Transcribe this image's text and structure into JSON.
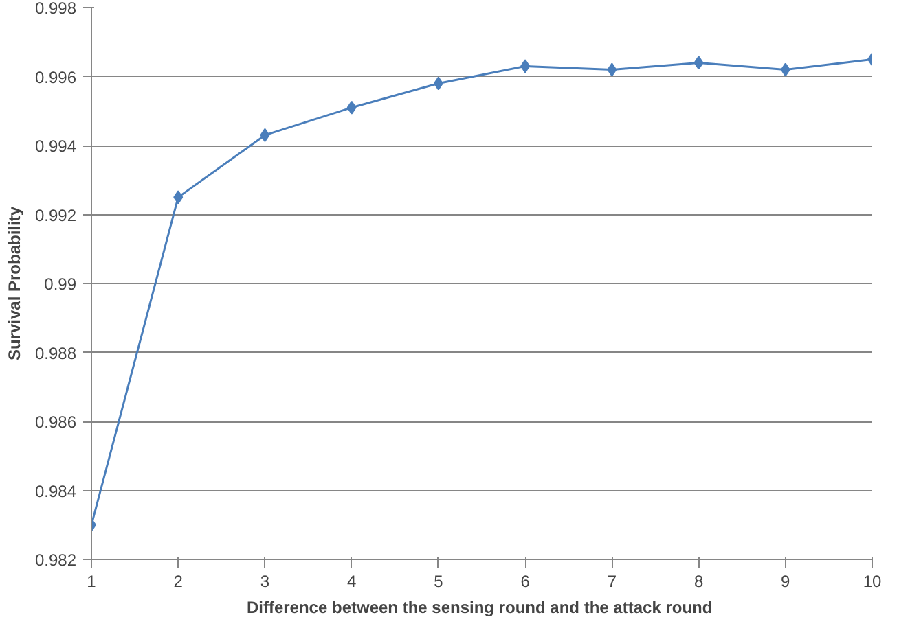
{
  "chart_data": {
    "type": "line",
    "xlabel": "Difference between  the sensing round and the attack round",
    "ylabel": "Survival Probability",
    "x": [
      1,
      2,
      3,
      4,
      5,
      6,
      7,
      8,
      9,
      10
    ],
    "series": [
      {
        "color": "#4a7ebb",
        "values": [
          0.983,
          0.9925,
          0.9943,
          0.9951,
          0.9958,
          0.9963,
          0.9962,
          0.9964,
          0.9962,
          0.9965
        ]
      }
    ],
    "xlim": [
      1,
      10
    ],
    "xticks": [
      1,
      2,
      3,
      4,
      5,
      6,
      7,
      8,
      9,
      10
    ],
    "ylim": [
      0.982,
      0.998
    ],
    "yticks": [
      0.982,
      0.984,
      0.986,
      0.988,
      0.99,
      0.992,
      0.994,
      0.996,
      0.998
    ],
    "grid": "y",
    "marker": "diamond",
    "line_style": "solid"
  }
}
